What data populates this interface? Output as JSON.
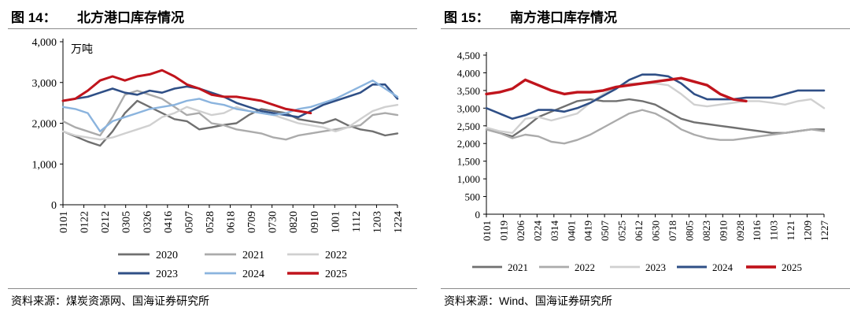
{
  "charts": [
    {
      "title_label": "图 14：",
      "title_text": "北方港口库存情况",
      "source": "资料来源：煤炭资源网、国海证券研究所",
      "chart_data": {
        "type": "line",
        "title": "北方港口库存情况",
        "unit": "万吨",
        "ylim": [
          0,
          4000
        ],
        "yticks": [
          "0",
          "1,000",
          "2,000",
          "3,000",
          "4,000"
        ],
        "ytick_values": [
          0,
          1000,
          2000,
          3000,
          4000
        ],
        "x_ticks": [
          "0101",
          "0122",
          "0212",
          "0305",
          "0326",
          "0416",
          "0507",
          "0528",
          "0618",
          "0709",
          "0730",
          "0820",
          "0910",
          "1001",
          "1112",
          "1203",
          "1224"
        ],
        "series": [
          {
            "name": "2020",
            "color": "#707070",
            "width": 2.4,
            "values": [
              1800,
              1680,
              1550,
              1450,
              1800,
              2250,
              2550,
              2400,
              2250,
              2100,
              2050,
              1850,
              1900,
              1960,
              2000,
              2200,
              2350,
              2300,
              2250,
              2100,
              2050,
              2000,
              2100,
              1950,
              1850,
              1800,
              1700,
              1750
            ]
          },
          {
            "name": "2021",
            "color": "#ababab",
            "width": 2.4,
            "values": [
              2050,
              1900,
              1800,
              1700,
              2150,
              2700,
              2800,
              2700,
              2600,
              2400,
              2200,
              2250,
              2000,
              1950,
              1850,
              1800,
              1750,
              1650,
              1600,
              1700,
              1750,
              1800,
              1850,
              1900,
              1950,
              2200,
              2250,
              2200
            ]
          },
          {
            "name": "2022",
            "color": "#d0d0d0",
            "width": 2.4,
            "values": [
              1800,
              1700,
              1650,
              1600,
              1650,
              1750,
              1850,
              1950,
              2150,
              2250,
              2400,
              2300,
              2200,
              2250,
              2400,
              2300,
              2250,
              2200,
              2100,
              2000,
              1950,
              1900,
              1800,
              1900,
              2100,
              2300,
              2400,
              2450
            ]
          },
          {
            "name": "2023",
            "color": "#2f4f86",
            "width": 2.6,
            "values": [
              2550,
              2600,
              2650,
              2750,
              2850,
              2750,
              2700,
              2800,
              2750,
              2850,
              2900,
              2850,
              2750,
              2650,
              2500,
              2400,
              2300,
              2250,
              2200,
              2150,
              2300,
              2450,
              2550,
              2650,
              2750,
              2950,
              2950,
              2600
            ]
          },
          {
            "name": "2024",
            "color": "#8bb4de",
            "width": 2.4,
            "values": [
              2400,
              2350,
              2250,
              1800,
              2050,
              2150,
              2250,
              2350,
              2400,
              2450,
              2550,
              2600,
              2500,
              2450,
              2350,
              2300,
              2250,
              2200,
              2250,
              2350,
              2400,
              2500,
              2600,
              2750,
              2900,
              3050,
              2850,
              2650
            ]
          },
          {
            "name": "2025",
            "color": "#c0141c",
            "width": 3.0,
            "values": [
              2550,
              2600,
              2800,
              3050,
              3150,
              3050,
              3150,
              3200,
              3300,
              3150,
              2950,
              2850,
              2700,
              2650,
              2650,
              2600,
              2550,
              2450,
              2350,
              2300,
              2250
            ]
          }
        ],
        "legend": [
          "2020",
          "2021",
          "2022",
          "2023",
          "2024",
          "2025"
        ]
      }
    },
    {
      "title_label": "图 15：",
      "title_text": "南方港口库存情况",
      "source": "资料来源：Wind、国海证券研究所",
      "chart_data": {
        "type": "line",
        "title": "南方港口库存情况",
        "unit": "万吨",
        "ylim": [
          0,
          4500
        ],
        "yticks": [
          "0",
          "500",
          "1,000",
          "1,500",
          "2,000",
          "2,500",
          "3,000",
          "3,500",
          "4,000",
          "4,500"
        ],
        "ytick_values": [
          0,
          500,
          1000,
          1500,
          2000,
          2500,
          3000,
          3500,
          4000,
          4500
        ],
        "x_ticks": [
          "0101",
          "0119",
          "0206",
          "0224",
          "0314",
          "0401",
          "0419",
          "0507",
          "0525",
          "0612",
          "0630",
          "0718",
          "0805",
          "0823",
          "0910",
          "0928",
          "1016",
          "1103",
          "1121",
          "1209",
          "1227"
        ],
        "series": [
          {
            "name": "2021",
            "color": "#707070",
            "width": 2.4,
            "values": [
              2400,
              2300,
              2200,
              2450,
              2750,
              2900,
              3050,
              3200,
              3250,
              3200,
              3200,
              3250,
              3200,
              3100,
              2900,
              2700,
              2600,
              2550,
              2500,
              2450,
              2400,
              2350,
              2300,
              2300,
              2350,
              2400,
              2400
            ]
          },
          {
            "name": "2022",
            "color": "#ababab",
            "width": 2.4,
            "values": [
              2400,
              2300,
              2150,
              2250,
              2200,
              2050,
              2000,
              2100,
              2250,
              2450,
              2650,
              2850,
              2950,
              2850,
              2650,
              2400,
              2250,
              2150,
              2100,
              2100,
              2150,
              2200,
              2250,
              2300,
              2350,
              2400,
              2350
            ]
          },
          {
            "name": "2023",
            "color": "#d0d0d0",
            "width": 2.4,
            "values": [
              2450,
              2350,
              2300,
              2700,
              2750,
              2650,
              2750,
              2850,
              3150,
              3400,
              3600,
              3700,
              3700,
              3700,
              3650,
              3400,
              3100,
              3050,
              3100,
              3150,
              3200,
              3200,
              3150,
              3100,
              3200,
              3250,
              3000
            ]
          },
          {
            "name": "2024",
            "color": "#2f4f86",
            "width": 2.6,
            "values": [
              3000,
              2850,
              2700,
              2800,
              2950,
              2950,
              2900,
              3000,
              3150,
              3350,
              3550,
              3800,
              3950,
              3950,
              3900,
              3700,
              3400,
              3250,
              3250,
              3250,
              3300,
              3300,
              3300,
              3400,
              3500,
              3500,
              3500
            ]
          },
          {
            "name": "2025",
            "color": "#c0141c",
            "width": 3.4,
            "values": [
              3400,
              3450,
              3550,
              3800,
              3650,
              3500,
              3400,
              3450,
              3450,
              3500,
              3600,
              3650,
              3700,
              3750,
              3800,
              3850,
              3750,
              3650,
              3400,
              3250,
              3200
            ]
          }
        ],
        "legend": [
          "2021",
          "2022",
          "2023",
          "2024",
          "2025"
        ]
      }
    }
  ]
}
